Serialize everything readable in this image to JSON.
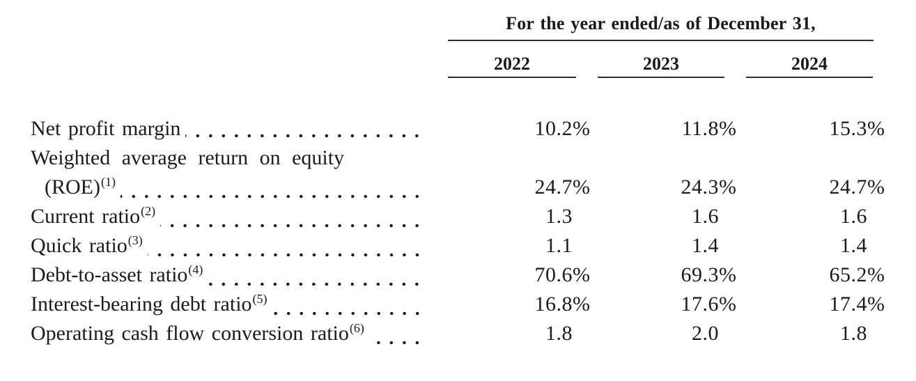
{
  "document": {
    "table": {
      "header_title": "For the year ended/as of December 31,",
      "columns": [
        "2022",
        "2023",
        "2024"
      ],
      "rows": [
        {
          "label": "Net profit margin",
          "values": [
            "10.2%",
            "11.8%",
            "15.3%"
          ]
        },
        {
          "wrap": "Weighted average return on equity",
          "label": "(ROE)",
          "sup": "(1)",
          "values": [
            "24.7%",
            "24.3%",
            "24.7%"
          ]
        },
        {
          "label": "Current ratio",
          "sup": "(2)",
          "values": [
            "1.3",
            "1.6",
            "1.6"
          ]
        },
        {
          "label": "Quick ratio",
          "sup": "(3)",
          "values": [
            "1.1",
            "1.4",
            "1.4"
          ]
        },
        {
          "label": "Debt-to-asset ratio",
          "sup": "(4)",
          "values": [
            "70.6%",
            "69.3%",
            "65.2%"
          ]
        },
        {
          "label": "Interest-bearing debt ratio",
          "sup": "(5)",
          "values": [
            "16.8%",
            "17.6%",
            "17.4%"
          ]
        },
        {
          "label": "Operating cash flow conversion ratio",
          "sup": "(6)",
          "values": [
            "1.8",
            "2.0",
            "1.8"
          ]
        }
      ]
    },
    "colors": {
      "text": "#1b1b1b",
      "rule": "#2e2e2e",
      "background": "#ffffff"
    }
  }
}
